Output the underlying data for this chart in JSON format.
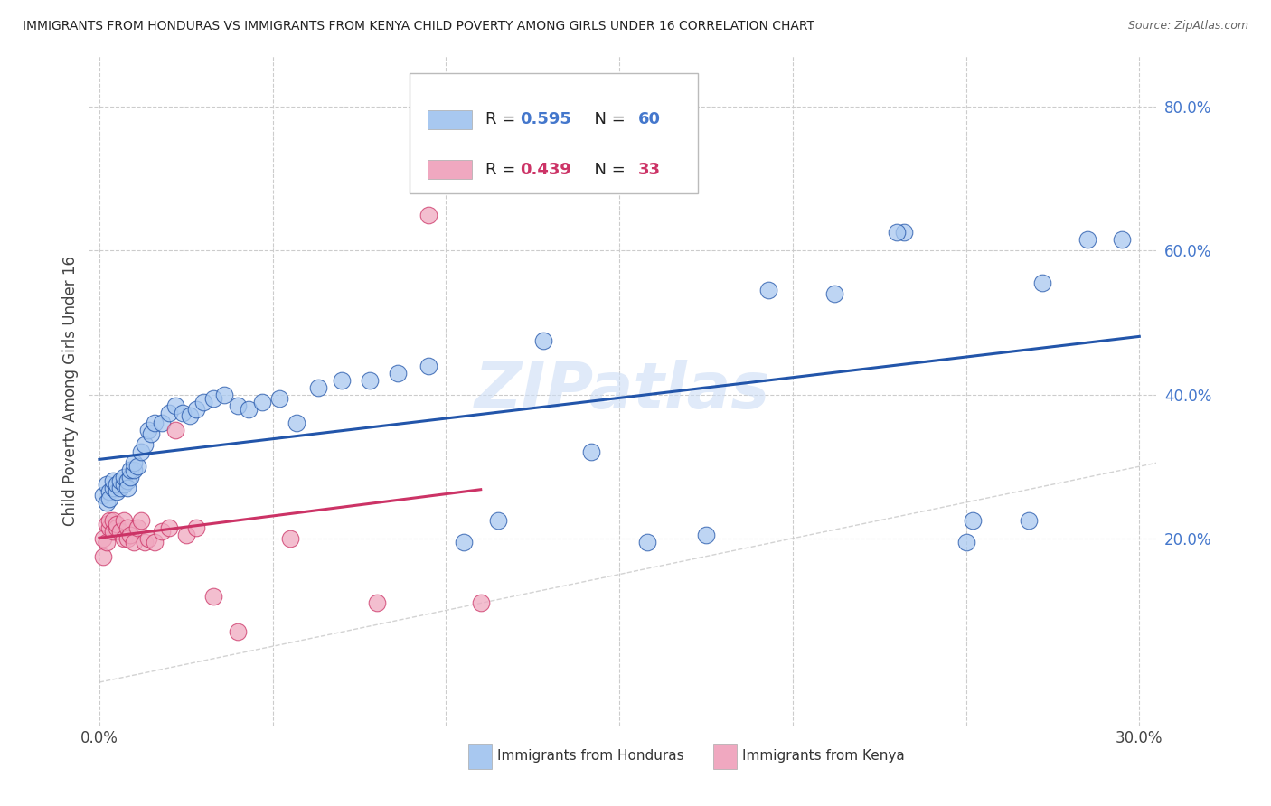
{
  "title": "IMMIGRANTS FROM HONDURAS VS IMMIGRANTS FROM KENYA CHILD POVERTY AMONG GIRLS UNDER 16 CORRELATION CHART",
  "source": "Source: ZipAtlas.com",
  "ylabel": "Child Poverty Among Girls Under 16",
  "honduras_color": "#a8c8f0",
  "kenya_color": "#f0a8c0",
  "regression_honduras_color": "#2255aa",
  "regression_kenya_color": "#cc3366",
  "diagonal_color": "#c8c8c8",
  "R_honduras": 0.595,
  "N_honduras": 60,
  "R_kenya": 0.439,
  "N_kenya": 33,
  "watermark": "ZIPatlas",
  "xlim": [
    -0.003,
    0.305
  ],
  "ylim": [
    -0.06,
    0.87
  ],
  "ytick_positions": [
    0.2,
    0.4,
    0.6,
    0.8
  ],
  "ytick_labels": [
    "20.0%",
    "40.0%",
    "60.0%",
    "80.0%"
  ],
  "xtick_positions": [
    0.0,
    0.05,
    0.1,
    0.15,
    0.2,
    0.25,
    0.3
  ],
  "xtick_labels": [
    "0.0%",
    "",
    "",
    "",
    "",
    "",
    "30.0%"
  ],
  "honduras_x": [
    0.001,
    0.002,
    0.002,
    0.003,
    0.003,
    0.004,
    0.004,
    0.005,
    0.005,
    0.006,
    0.006,
    0.007,
    0.007,
    0.008,
    0.008,
    0.009,
    0.009,
    0.01,
    0.01,
    0.011,
    0.012,
    0.013,
    0.014,
    0.015,
    0.016,
    0.018,
    0.02,
    0.022,
    0.024,
    0.026,
    0.028,
    0.03,
    0.033,
    0.036,
    0.04,
    0.043,
    0.047,
    0.052,
    0.057,
    0.063,
    0.07,
    0.078,
    0.086,
    0.095,
    0.105,
    0.115,
    0.128,
    0.142,
    0.158,
    0.175,
    0.193,
    0.212,
    0.232,
    0.252,
    0.272,
    0.23,
    0.25,
    0.268,
    0.285,
    0.295
  ],
  "honduras_y": [
    0.26,
    0.25,
    0.275,
    0.265,
    0.255,
    0.27,
    0.28,
    0.265,
    0.275,
    0.27,
    0.28,
    0.275,
    0.285,
    0.28,
    0.27,
    0.285,
    0.295,
    0.295,
    0.305,
    0.3,
    0.32,
    0.33,
    0.35,
    0.345,
    0.36,
    0.36,
    0.375,
    0.385,
    0.375,
    0.37,
    0.38,
    0.39,
    0.395,
    0.4,
    0.385,
    0.38,
    0.39,
    0.395,
    0.36,
    0.41,
    0.42,
    0.42,
    0.43,
    0.44,
    0.195,
    0.225,
    0.475,
    0.32,
    0.195,
    0.205,
    0.545,
    0.54,
    0.625,
    0.225,
    0.555,
    0.625,
    0.195,
    0.225,
    0.615,
    0.615
  ],
  "kenya_x": [
    0.001,
    0.001,
    0.002,
    0.002,
    0.003,
    0.003,
    0.004,
    0.004,
    0.005,
    0.005,
    0.006,
    0.007,
    0.007,
    0.008,
    0.008,
    0.009,
    0.01,
    0.011,
    0.012,
    0.013,
    0.014,
    0.016,
    0.018,
    0.02,
    0.022,
    0.025,
    0.028,
    0.033,
    0.04,
    0.055,
    0.08,
    0.095,
    0.11
  ],
  "kenya_y": [
    0.2,
    0.175,
    0.22,
    0.195,
    0.215,
    0.225,
    0.21,
    0.225,
    0.215,
    0.22,
    0.21,
    0.2,
    0.225,
    0.215,
    0.2,
    0.205,
    0.195,
    0.215,
    0.225,
    0.195,
    0.2,
    0.195,
    0.21,
    0.215,
    0.35,
    0.205,
    0.215,
    0.12,
    0.07,
    0.2,
    0.11,
    0.65,
    0.11
  ]
}
